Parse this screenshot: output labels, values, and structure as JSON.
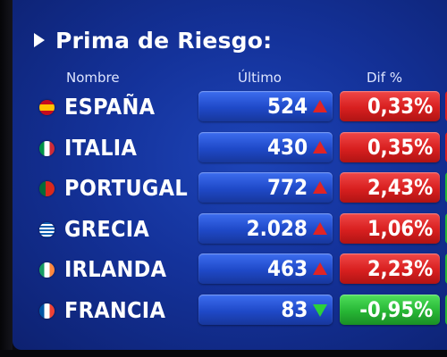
{
  "title": "Prima de Riesgo:",
  "columns": {
    "name": "Nombre",
    "last": "Último",
    "diff": "Dif %"
  },
  "colors": {
    "up_arrow": "#e02424",
    "down_arrow": "#2bd13a",
    "up_box": "#d81f1f",
    "down_box": "#27b635",
    "background": "#14329a"
  },
  "rows": [
    {
      "country": "ESPAÑA",
      "last": "524",
      "trend": "up",
      "diff": "0,33%",
      "flag": "spain-flag-icon"
    },
    {
      "country": "ITALIA",
      "last": "430",
      "trend": "up",
      "diff": "0,35%",
      "flag": "italy-flag-icon"
    },
    {
      "country": "PORTUGAL",
      "last": "772",
      "trend": "up",
      "diff": "2,43%",
      "flag": "portugal-flag-icon"
    },
    {
      "country": "GRECIA",
      "last": "2.028",
      "trend": "up",
      "diff": "1,06%",
      "flag": "greece-flag-icon"
    },
    {
      "country": "IRLANDA",
      "last": "463",
      "trend": "up",
      "diff": "2,23%",
      "flag": "ireland-flag-icon"
    },
    {
      "country": "FRANCIA",
      "last": "83",
      "trend": "down",
      "diff": "-0,95%",
      "flag": "france-flag-icon"
    }
  ]
}
